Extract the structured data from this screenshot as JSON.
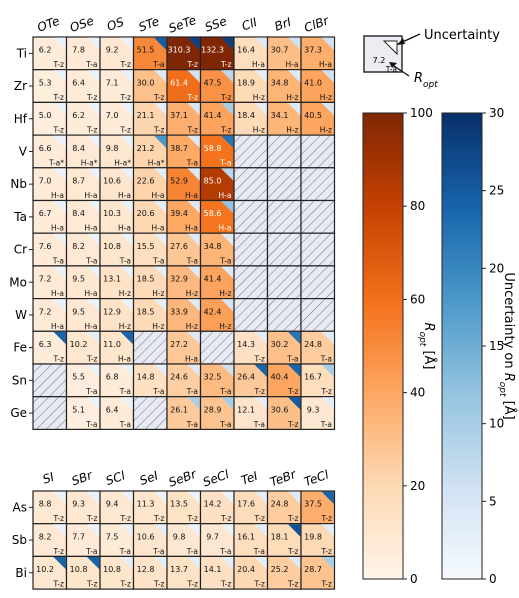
{
  "chart_data": {
    "type": "heatmap",
    "legend_key": {
      "value": "7.2",
      "sub": "T-a",
      "uncertainty_label": "Uncertainty",
      "ropt_label_main": "R",
      "ropt_label_sub": "opt"
    },
    "colorbar_ropt": {
      "label_main": "R",
      "label_sub": "opt",
      "label_unit": " [Å]",
      "range": [
        0,
        100
      ],
      "ticks": [
        "0",
        "20",
        "40",
        "60",
        "80",
        "100"
      ],
      "color_low": "#fff5eb",
      "color_high": "#7f2704"
    },
    "colorbar_unc": {
      "label_pre": "Uncertainty on ",
      "label_main": "R",
      "label_sub": "opt",
      "label_unit": " [Å]",
      "range": [
        0,
        30
      ],
      "ticks": [
        "0",
        "5",
        "10",
        "15",
        "20",
        "25",
        "30"
      ],
      "color_low": "#f7fbff",
      "color_high": "#08306b"
    },
    "top_panel": {
      "columns": [
        "OTe",
        "OSe",
        "OS",
        "STe",
        "SeTe",
        "SSe",
        "ClI",
        "BrI",
        "ClBr"
      ],
      "rows": [
        {
          "label": "Ti",
          "cells": [
            {
              "v": "6.2",
              "s": "T-z",
              "u": 2
            },
            {
              "v": "7.8",
              "s": "T-a",
              "u": 2
            },
            {
              "v": "9.2",
              "s": "T-z",
              "u": 2
            },
            {
              "v": "51.5",
              "s": "T-a",
              "u": 25
            },
            {
              "v": "310.3",
              "s": "T-z",
              "u": 28
            },
            {
              "v": "132.3",
              "s": "T-z",
              "u": 28
            },
            {
              "v": "16.4",
              "s": "H-a",
              "u": 4
            },
            {
              "v": "30.7",
              "s": "H-a",
              "u": 6
            },
            {
              "v": "37.3",
              "s": "H-a",
              "u": 6
            }
          ]
        },
        {
          "label": "Zr",
          "cells": [
            {
              "v": "5.3",
              "s": "T-z",
              "u": 2
            },
            {
              "v": "6.4",
              "s": "T-z",
              "u": 2
            },
            {
              "v": "7.1",
              "s": "T-z",
              "u": 2
            },
            {
              "v": "30.0",
              "s": "T-z",
              "u": 4
            },
            {
              "v": "61.4",
              "s": "T-z",
              "u": 6
            },
            {
              "v": "47.5",
              "s": "T-z",
              "u": 8
            },
            {
              "v": "18.9",
              "s": "H-z",
              "u": 3
            },
            {
              "v": "34.8",
              "s": "H-z",
              "u": 4
            },
            {
              "v": "41.0",
              "s": "H-z",
              "u": 6
            }
          ]
        },
        {
          "label": "Hf",
          "cells": [
            {
              "v": "5.0",
              "s": "T-z",
              "u": 2
            },
            {
              "v": "6.2",
              "s": "T-z",
              "u": 2
            },
            {
              "v": "7.0",
              "s": "T-z",
              "u": 2
            },
            {
              "v": "21.1",
              "s": "T-z",
              "u": 3
            },
            {
              "v": "37.1",
              "s": "T-z",
              "u": 5
            },
            {
              "v": "41.4",
              "s": "T-z",
              "u": 10
            },
            {
              "v": "18.4",
              "s": "H-z",
              "u": 3
            },
            {
              "v": "34.1",
              "s": "H-z",
              "u": 4
            },
            {
              "v": "40.5",
              "s": "H-z",
              "u": 5
            }
          ]
        },
        {
          "label": "V",
          "cells": [
            {
              "v": "6.6",
              "s": "T-a*",
              "u": 2
            },
            {
              "v": "8.4",
              "s": "H-a*",
              "u": 2
            },
            {
              "v": "9.8",
              "s": "H-a*",
              "u": 2
            },
            {
              "v": "21.2",
              "s": "H-a*",
              "u": 18
            },
            {
              "v": "38.7",
              "s": "T-a",
              "u": 4
            },
            {
              "v": "58.8",
              "s": "T-a",
              "u": 22
            },
            null,
            null,
            null
          ]
        },
        {
          "label": "Nb",
          "cells": [
            {
              "v": "7.0",
              "s": "H-a",
              "u": 2
            },
            {
              "v": "8.7",
              "s": "H-a",
              "u": 2
            },
            {
              "v": "10.6",
              "s": "H-a",
              "u": 2
            },
            {
              "v": "22.6",
              "s": "H-a",
              "u": 3
            },
            {
              "v": "52.9",
              "s": "H-a",
              "u": 4
            },
            {
              "v": "85.0",
              "s": "H-a",
              "u": 8
            },
            null,
            null,
            null
          ]
        },
        {
          "label": "Ta",
          "cells": [
            {
              "v": "6.7",
              "s": "H-a",
              "u": 2
            },
            {
              "v": "8.4",
              "s": "H-a",
              "u": 2
            },
            {
              "v": "10.3",
              "s": "H-a",
              "u": 2
            },
            {
              "v": "20.6",
              "s": "H-a",
              "u": 3
            },
            {
              "v": "39.4",
              "s": "H-a",
              "u": 4
            },
            {
              "v": "58.6",
              "s": "H-a",
              "u": 12
            },
            null,
            null,
            null
          ]
        },
        {
          "label": "Cr",
          "cells": [
            {
              "v": "7.6",
              "s": "T-a",
              "u": 2
            },
            {
              "v": "8.2",
              "s": "T-a",
              "u": 2
            },
            {
              "v": "10.8",
              "s": "T-a",
              "u": 2
            },
            {
              "v": "15.5",
              "s": "T-a",
              "u": 3
            },
            {
              "v": "27.6",
              "s": "T-a",
              "u": 4
            },
            {
              "v": "34.8",
              "s": "T-a",
              "u": 4
            },
            null,
            null,
            null
          ]
        },
        {
          "label": "Mo",
          "cells": [
            {
              "v": "7.2",
              "s": "H-a",
              "u": 2
            },
            {
              "v": "9.5",
              "s": "H-a",
              "u": 2
            },
            {
              "v": "13.1",
              "s": "H-z",
              "u": 2
            },
            {
              "v": "18.5",
              "s": "H-z",
              "u": 3
            },
            {
              "v": "32.9",
              "s": "H-z",
              "u": 4
            },
            {
              "v": "41.4",
              "s": "H-z",
              "u": 4
            },
            null,
            null,
            null
          ]
        },
        {
          "label": "W",
          "cells": [
            {
              "v": "7.2",
              "s": "H-a",
              "u": 2
            },
            {
              "v": "9.5",
              "s": "H-a",
              "u": 2
            },
            {
              "v": "12.9",
              "s": "H-z",
              "u": 2
            },
            {
              "v": "18.5",
              "s": "H-z",
              "u": 3
            },
            {
              "v": "33.9",
              "s": "H-z",
              "u": 4
            },
            {
              "v": "42.4",
              "s": "H-z",
              "u": 5
            },
            null,
            null,
            null
          ]
        },
        {
          "label": "Fe",
          "cells": [
            {
              "v": "6.3",
              "s": "T-z",
              "u": 24
            },
            {
              "v": "10.2",
              "s": "T-z",
              "u": 3
            },
            {
              "v": "11.0",
              "s": "H-a",
              "u": 24
            },
            null,
            {
              "v": "27.2",
              "s": "H-a",
              "u": 4
            },
            null,
            {
              "v": "14.3",
              "s": "T-z",
              "u": 3
            },
            {
              "v": "30.2",
              "s": "T-a",
              "u": 22
            },
            {
              "v": "24.8",
              "s": "T-a",
              "u": 4
            }
          ]
        },
        {
          "label": "Sn",
          "cells": [
            null,
            {
              "v": "5.5",
              "s": "T-a",
              "u": 2
            },
            {
              "v": "6.8",
              "s": "T-a",
              "u": 2
            },
            {
              "v": "14.8",
              "s": "T-a",
              "u": 3
            },
            {
              "v": "24.6",
              "s": "T-a",
              "u": 4
            },
            {
              "v": "32.5",
              "s": "T-a",
              "u": 6
            },
            {
              "v": "26.4",
              "s": "T-z",
              "u": 24
            },
            {
              "v": "40.4",
              "s": "T-z",
              "u": 24
            },
            {
              "v": "16.7",
              "s": "T-z",
              "u": 10
            }
          ]
        },
        {
          "label": "Ge",
          "cells": [
            null,
            {
              "v": "5.1",
              "s": "T-a",
              "u": 2
            },
            {
              "v": "6.4",
              "s": "T-a",
              "u": 2
            },
            null,
            {
              "v": "26.1",
              "s": "T-a",
              "u": 10
            },
            {
              "v": "28.9",
              "s": "T-a",
              "u": 10
            },
            {
              "v": "12.1",
              "s": "T-a",
              "u": 3
            },
            {
              "v": "30.6",
              "s": "T-z",
              "u": 25
            },
            {
              "v": "9.3",
              "s": "T-a",
              "u": 3
            }
          ]
        }
      ]
    },
    "bottom_panel": {
      "columns": [
        "SI",
        "SBr",
        "SCl",
        "SeI",
        "SeBr",
        "SeCl",
        "TeI",
        "TeBr",
        "TeCl"
      ],
      "rows": [
        {
          "label": "As",
          "cells": [
            {
              "v": "8.8",
              "s": "T-z",
              "u": 2
            },
            {
              "v": "9.3",
              "s": "T-z",
              "u": 2
            },
            {
              "v": "9.4",
              "s": "T-z",
              "u": 2
            },
            {
              "v": "11.3",
              "s": "T-z",
              "u": 2
            },
            {
              "v": "13.5",
              "s": "T-z",
              "u": 2
            },
            {
              "v": "14.2",
              "s": "T-z",
              "u": 2
            },
            {
              "v": "17.6",
              "s": "T-z",
              "u": 3
            },
            {
              "v": "24.8",
              "s": "T-z",
              "u": 4
            },
            {
              "v": "37.5",
              "s": "T-z",
              "u": 24
            }
          ]
        },
        {
          "label": "Sb",
          "cells": [
            {
              "v": "8.2",
              "s": "T-z",
              "u": 2
            },
            {
              "v": "7.7",
              "s": "T-a",
              "u": 2
            },
            {
              "v": "7.5",
              "s": "T-a",
              "u": 2
            },
            {
              "v": "10.6",
              "s": "T-a",
              "u": 3
            },
            {
              "v": "9.8",
              "s": "T-a",
              "u": 2
            },
            {
              "v": "9.7",
              "s": "T-a",
              "u": 2
            },
            {
              "v": "16.1",
              "s": "T-a",
              "u": 3
            },
            {
              "v": "18.1",
              "s": "T-z",
              "u": 26
            },
            {
              "v": "19.8",
              "s": "T-z",
              "u": 3
            }
          ]
        },
        {
          "label": "Bi",
          "cells": [
            {
              "v": "10.2",
              "s": "T-z",
              "u": 24
            },
            {
              "v": "10.8",
              "s": "T-z",
              "u": 24
            },
            {
              "v": "10.8",
              "s": "T-z",
              "u": 3
            },
            {
              "v": "12.8",
              "s": "T-z",
              "u": 3
            },
            {
              "v": "13.7",
              "s": "T-z",
              "u": 3
            },
            {
              "v": "14.1",
              "s": "T-z",
              "u": 3
            },
            {
              "v": "20.4",
              "s": "T-z",
              "u": 3
            },
            {
              "v": "25.2",
              "s": "T-z",
              "u": 4
            },
            {
              "v": "28.7",
              "s": "T-z",
              "u": 10
            }
          ]
        }
      ]
    }
  }
}
